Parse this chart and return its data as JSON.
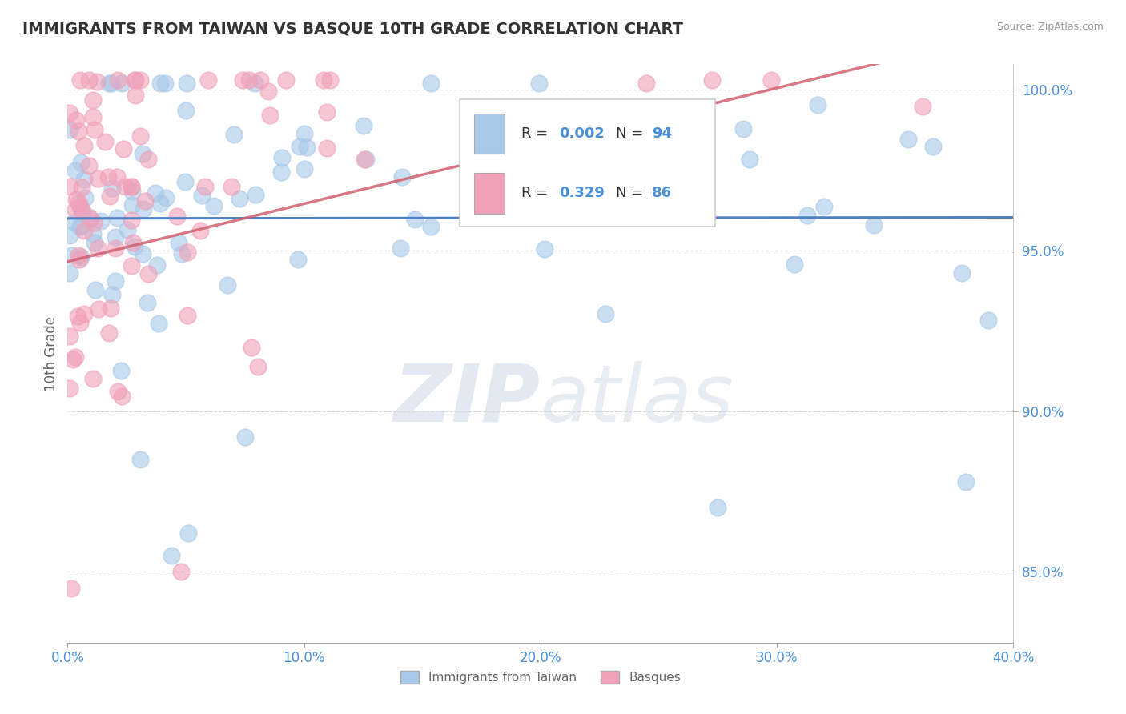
{
  "title": "IMMIGRANTS FROM TAIWAN VS BASQUE 10TH GRADE CORRELATION CHART",
  "source_text": "Source: ZipAtlas.com",
  "ylabel": "10th Grade",
  "legend_label1": "Immigrants from Taiwan",
  "legend_label2": "Basques",
  "R1": 0.002,
  "N1": 94,
  "R2": 0.329,
  "N2": 86,
  "color1": "#a8c8e8",
  "color2": "#f0a0b8",
  "trend_color1": "#5080c0",
  "trend_color2": "#d06070",
  "x_min": 0.0,
  "x_max": 0.4,
  "y_min": 0.828,
  "y_max": 1.008,
  "x_ticks": [
    0.0,
    0.1,
    0.2,
    0.3,
    0.4
  ],
  "x_tick_labels": [
    "0.0%",
    "10.0%",
    "20.0%",
    "30.0%",
    "40.0%"
  ],
  "y_ticks": [
    0.85,
    0.9,
    0.95,
    1.0
  ],
  "y_tick_labels": [
    "85.0%",
    "90.0%",
    "95.0%",
    "100.0%"
  ],
  "background_color": "#ffffff",
  "grid_color": "#cccccc",
  "title_color": "#333333",
  "axis_label_color": "#666666",
  "tick_label_color": "#4a90d9",
  "watermark_color": "#ccd8e8",
  "legend_text_color": "#333333",
  "source_color": "#999999"
}
